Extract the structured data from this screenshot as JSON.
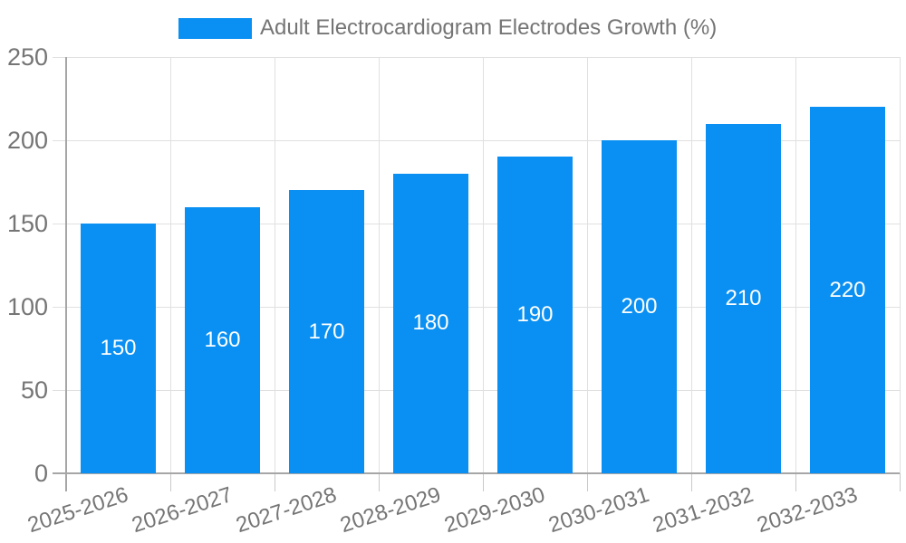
{
  "chart_data": {
    "type": "bar",
    "title": "Adult Electrocardiogram Electrodes Growth (%)",
    "categories": [
      "2025-2026",
      "2026-2027",
      "2027-2028",
      "2028-2029",
      "2029-2030",
      "2030-2031",
      "2031-2032",
      "2032-2033"
    ],
    "values": [
      150,
      160,
      170,
      180,
      190,
      200,
      210,
      220
    ],
    "bar_labels": [
      "150",
      "160",
      "170",
      "180",
      "190",
      "200",
      "210",
      "220"
    ],
    "xlabel": "",
    "ylabel": "",
    "ylim": [
      0,
      250
    ],
    "yticks": [
      "0",
      "50",
      "100",
      "150",
      "200",
      "250"
    ],
    "grid": "both",
    "legend_position": "top",
    "colors": {
      "bar": "#0A90F2",
      "bar_label": "#FFFFFF",
      "grid": "#E0E0E0",
      "axis_line": "#A6A6A6",
      "tick": "#C9C9C9",
      "text": "#757575",
      "background": "#FFFFFF"
    }
  }
}
